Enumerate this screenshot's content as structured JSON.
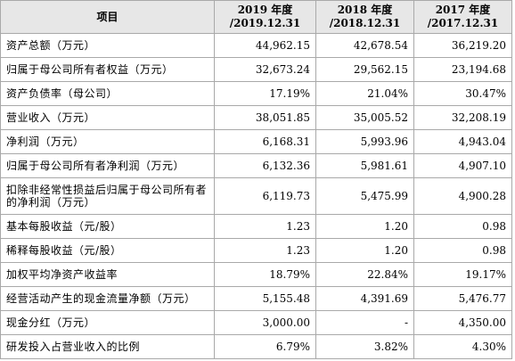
{
  "table": {
    "header": {
      "item": "项目",
      "years": [
        {
          "year": "2019 年度",
          "period": "/2019.12.31"
        },
        {
          "year": "2018 年度",
          "period": "/2018.12.31"
        },
        {
          "year": "2017 年度",
          "period": "/2017.12.31"
        }
      ]
    },
    "rows": [
      {
        "label": "资产总额（万元）",
        "values": [
          "44,962.15",
          "42,678.54",
          "36,219.20"
        ]
      },
      {
        "label": "归属于母公司所有者权益（万元）",
        "values": [
          "32,673.24",
          "29,562.15",
          "23,194.68"
        ]
      },
      {
        "label": "资产负债率（母公司）",
        "values": [
          "17.19%",
          "21.04%",
          "30.47%"
        ]
      },
      {
        "label": "营业收入（万元）",
        "values": [
          "38,051.85",
          "35,005.52",
          "32,208.19"
        ]
      },
      {
        "label": "净利润（万元）",
        "values": [
          "6,168.31",
          "5,993.96",
          "4,943.04"
        ]
      },
      {
        "label": "归属于母公司所有者净利润（万元）",
        "values": [
          "6,132.36",
          "5,981.61",
          "4,907.10"
        ]
      },
      {
        "label": "扣除非经常性损益后归属于母公司所有者的净利润（万元）",
        "values": [
          "6,119.73",
          "5,475.99",
          "4,900.28"
        ],
        "tall": true
      },
      {
        "label": "基本每股收益（元/股）",
        "values": [
          "1.23",
          "1.20",
          "0.98"
        ]
      },
      {
        "label": "稀释每股收益（元/股）",
        "values": [
          "1.23",
          "1.20",
          "0.98"
        ]
      },
      {
        "label": "加权平均净资产收益率",
        "values": [
          "18.79%",
          "22.84%",
          "19.17%"
        ]
      },
      {
        "label": "经营活动产生的现金流量净额（万元）",
        "values": [
          "5,155.48",
          "4,391.69",
          "5,476.77"
        ]
      },
      {
        "label": "现金分红（万元）",
        "values": [
          "3,000.00",
          "-",
          "4,350.00"
        ]
      },
      {
        "label": "研发投入占营业收入的比例",
        "values": [
          "6.79%",
          "3.82%",
          "4.30%"
        ]
      }
    ]
  }
}
